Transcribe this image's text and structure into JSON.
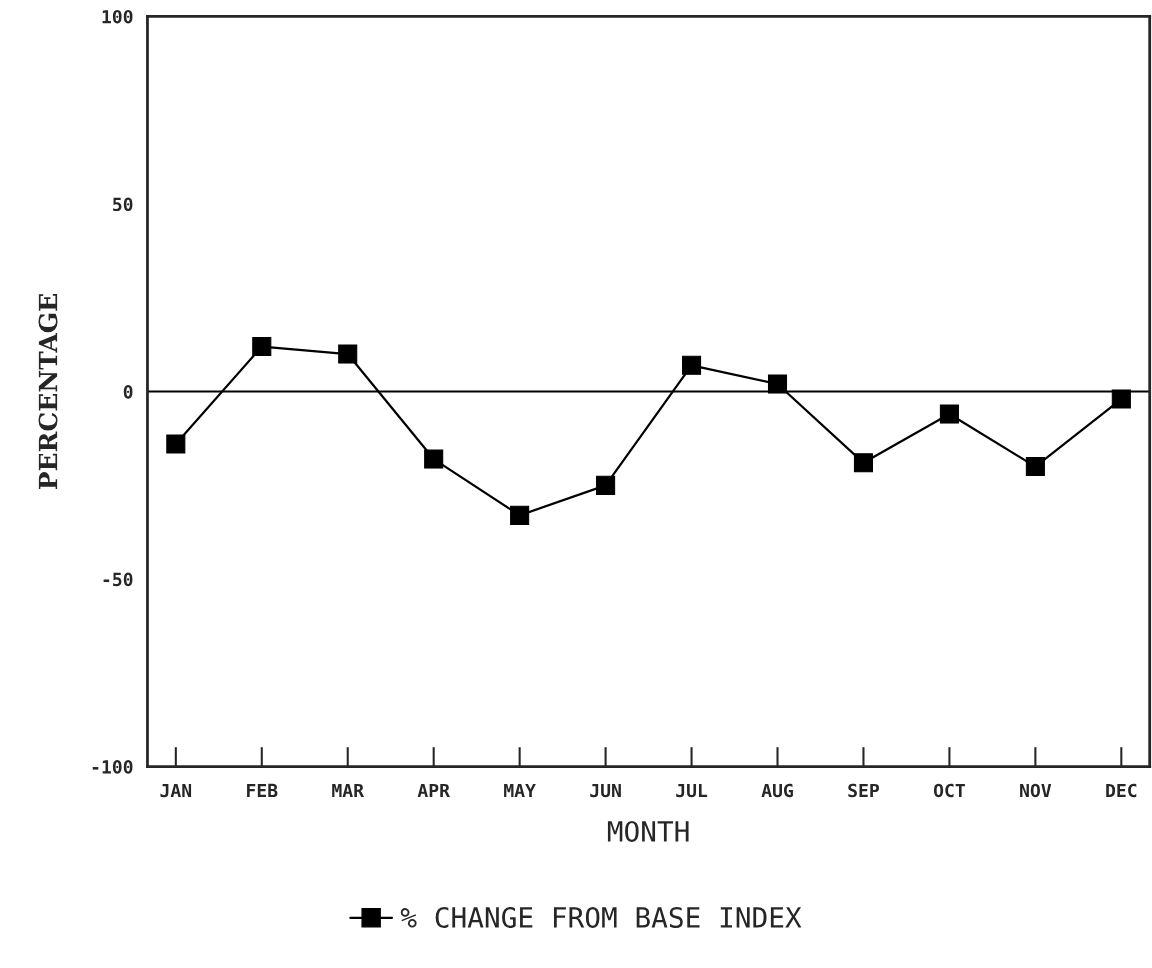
{
  "chart_data": {
    "type": "line",
    "xlabel": "MONTH",
    "ylabel": "PERCENTAGE",
    "categories": [
      "JAN",
      "FEB",
      "MAR",
      "APR",
      "MAY",
      "JUN",
      "JUL",
      "AUG",
      "SEP",
      "OCT",
      "NOV",
      "DEC"
    ],
    "series": [
      {
        "name": "% CHANGE FROM BASE INDEX",
        "color": "#000000",
        "values": [
          -14,
          12,
          10,
          -18,
          -33,
          -25,
          7,
          2,
          -19,
          -6,
          -20,
          -2
        ]
      }
    ],
    "ylim": [
      -100,
      100
    ],
    "yticks": [
      -100,
      -50,
      0,
      50,
      100
    ],
    "ref_lines": [
      {
        "axis": "y",
        "value": 0,
        "color": "#000000"
      }
    ],
    "marker": "square",
    "line_style": "solid",
    "legend": "bottom",
    "grid": false
  }
}
